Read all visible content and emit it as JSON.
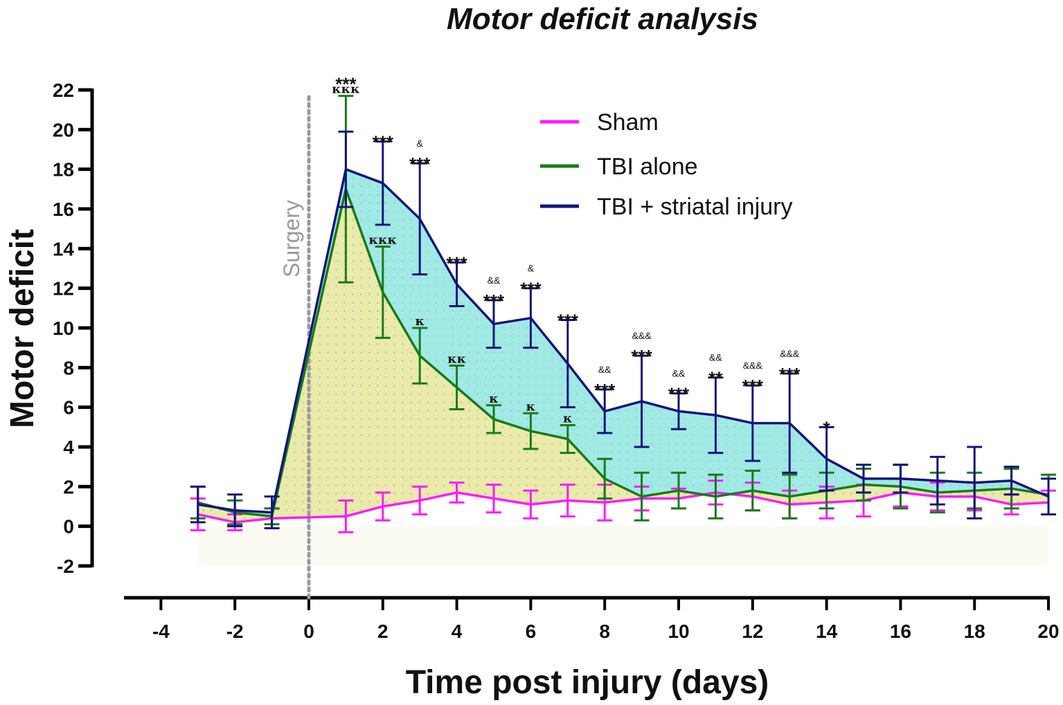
{
  "chart_data": {
    "type": "line",
    "title": "Motor deficit analysis",
    "xlabel": "Time post injury (days)",
    "ylabel": "Motor deficit",
    "xlim": [
      -5,
      20
    ],
    "ylim": [
      -2,
      22
    ],
    "xticks": [
      -4,
      -2,
      0,
      2,
      4,
      6,
      8,
      10,
      12,
      14,
      16,
      18,
      20
    ],
    "yticks": [
      -2,
      0,
      2,
      4,
      6,
      8,
      10,
      12,
      14,
      16,
      18,
      20,
      22
    ],
    "legend_position": "top-right",
    "surgery_marker": {
      "x": 0,
      "label": "Surgery"
    },
    "colors": {
      "sham": "#ff1aff",
      "tbi": "#1a7a1a",
      "striatal": "#15157a",
      "fill_tbi": "#e6e89a",
      "fill_striatal": "#8ee6e0"
    },
    "series": [
      {
        "key": "sham",
        "name": "Sham",
        "x": [
          -3,
          -2,
          -1,
          1,
          2,
          3,
          4,
          5,
          6,
          7,
          8,
          9,
          10,
          11,
          12,
          13,
          14,
          15,
          16,
          17,
          18,
          19,
          20
        ],
        "values": [
          0.6,
          0.2,
          0.4,
          0.5,
          1.0,
          1.3,
          1.7,
          1.4,
          1.1,
          1.3,
          1.2,
          1.4,
          1.4,
          1.7,
          1.5,
          1.1,
          1.2,
          1.3,
          1.7,
          1.5,
          1.5,
          1.1,
          1.2
        ],
        "errors": [
          0.8,
          0.4,
          0.5,
          0.8,
          0.7,
          0.7,
          0.5,
          0.7,
          0.7,
          0.8,
          0.9,
          0.6,
          0.5,
          0.6,
          0.7,
          0.7,
          0.8,
          0.8,
          0.7,
          0.7,
          0.7,
          0.5,
          0.6
        ]
      },
      {
        "key": "tbi",
        "name": "TBI alone",
        "x": [
          -3,
          -2,
          -1,
          1,
          2,
          3,
          4,
          5,
          6,
          7,
          8,
          9,
          10,
          11,
          12,
          13,
          14,
          15,
          16,
          17,
          18,
          19,
          20
        ],
        "values": [
          1.2,
          0.7,
          0.5,
          17.0,
          11.8,
          8.6,
          7.0,
          5.4,
          4.8,
          4.4,
          2.4,
          1.5,
          1.8,
          1.5,
          1.8,
          1.5,
          1.8,
          2.1,
          2.0,
          1.7,
          1.8,
          1.9,
          1.6
        ],
        "errors": [
          0.8,
          0.6,
          0.4,
          4.7,
          2.3,
          1.4,
          1.1,
          0.7,
          0.9,
          0.7,
          1.0,
          1.2,
          0.9,
          1.1,
          1.0,
          1.1,
          0.9,
          0.8,
          1.1,
          1.0,
          0.9,
          1.0,
          1.0
        ]
      },
      {
        "key": "striatal",
        "name": "TBI + striatal injury",
        "x": [
          -3,
          -2,
          -1,
          1,
          2,
          3,
          4,
          5,
          6,
          7,
          8,
          9,
          10,
          11,
          12,
          13,
          14,
          15,
          16,
          17,
          18,
          19,
          20
        ],
        "values": [
          1.1,
          0.8,
          0.7,
          18.0,
          17.3,
          15.5,
          12.2,
          10.2,
          10.5,
          8.2,
          5.8,
          6.3,
          5.8,
          5.6,
          5.2,
          5.2,
          3.4,
          2.4,
          2.4,
          2.3,
          2.2,
          2.3,
          1.5
        ],
        "errors": [
          0.9,
          0.8,
          0.8,
          1.9,
          2.1,
          2.8,
          1.1,
          1.2,
          1.5,
          2.2,
          1.1,
          2.3,
          0.9,
          1.9,
          1.9,
          2.5,
          1.6,
          0.7,
          0.7,
          1.2,
          1.8,
          0.7,
          0.9
        ]
      }
    ],
    "annotations": [
      {
        "x": 1,
        "lines": [
          "***",
          "κκκ"
        ],
        "kinds": [
          "star",
          "kappa"
        ],
        "anchor": 21.7
      },
      {
        "x": 2,
        "lines": [
          "***"
        ],
        "kinds": [
          "star"
        ],
        "anchor": 19.4
      },
      {
        "x": 2,
        "lines": [
          "κκκ"
        ],
        "kinds": [
          "kappa"
        ],
        "anchor": 14.1
      },
      {
        "x": 3,
        "lines": [
          "&",
          "***"
        ],
        "kinds": [
          "amp",
          "star"
        ],
        "anchor": 18.3
      },
      {
        "x": 3,
        "lines": [
          "κ"
        ],
        "kinds": [
          "kappa"
        ],
        "anchor": 10.0
      },
      {
        "x": 4,
        "lines": [
          "***"
        ],
        "kinds": [
          "star"
        ],
        "anchor": 13.3
      },
      {
        "x": 4,
        "lines": [
          "κκ"
        ],
        "kinds": [
          "kappa"
        ],
        "anchor": 8.1
      },
      {
        "x": 5,
        "lines": [
          "&&",
          "***"
        ],
        "kinds": [
          "amp",
          "star"
        ],
        "anchor": 11.4
      },
      {
        "x": 5,
        "lines": [
          "κ"
        ],
        "kinds": [
          "kappa"
        ],
        "anchor": 6.1
      },
      {
        "x": 6,
        "lines": [
          "&",
          "***"
        ],
        "kinds": [
          "amp",
          "star"
        ],
        "anchor": 12.0
      },
      {
        "x": 6,
        "lines": [
          "κ"
        ],
        "kinds": [
          "kappa"
        ],
        "anchor": 5.7
      },
      {
        "x": 7,
        "lines": [
          "***"
        ],
        "kinds": [
          "star"
        ],
        "anchor": 10.4
      },
      {
        "x": 7,
        "lines": [
          "κ"
        ],
        "kinds": [
          "kappa"
        ],
        "anchor": 5.1
      },
      {
        "x": 8,
        "lines": [
          "&&",
          "***"
        ],
        "kinds": [
          "amp",
          "star"
        ],
        "anchor": 6.9
      },
      {
        "x": 9,
        "lines": [
          "&&&",
          "***"
        ],
        "kinds": [
          "amp",
          "star"
        ],
        "anchor": 8.6
      },
      {
        "x": 10,
        "lines": [
          "&&",
          "***"
        ],
        "kinds": [
          "amp",
          "star"
        ],
        "anchor": 6.7
      },
      {
        "x": 11,
        "lines": [
          "&&",
          "**"
        ],
        "kinds": [
          "amp",
          "star"
        ],
        "anchor": 7.5
      },
      {
        "x": 12,
        "lines": [
          "&&&",
          "***"
        ],
        "kinds": [
          "amp",
          "star"
        ],
        "anchor": 7.1
      },
      {
        "x": 13,
        "lines": [
          "&&&",
          "***"
        ],
        "kinds": [
          "amp",
          "star"
        ],
        "anchor": 7.7
      },
      {
        "x": 14,
        "lines": [
          "*"
        ],
        "kinds": [
          "star"
        ],
        "anchor": 5.0
      }
    ]
  }
}
